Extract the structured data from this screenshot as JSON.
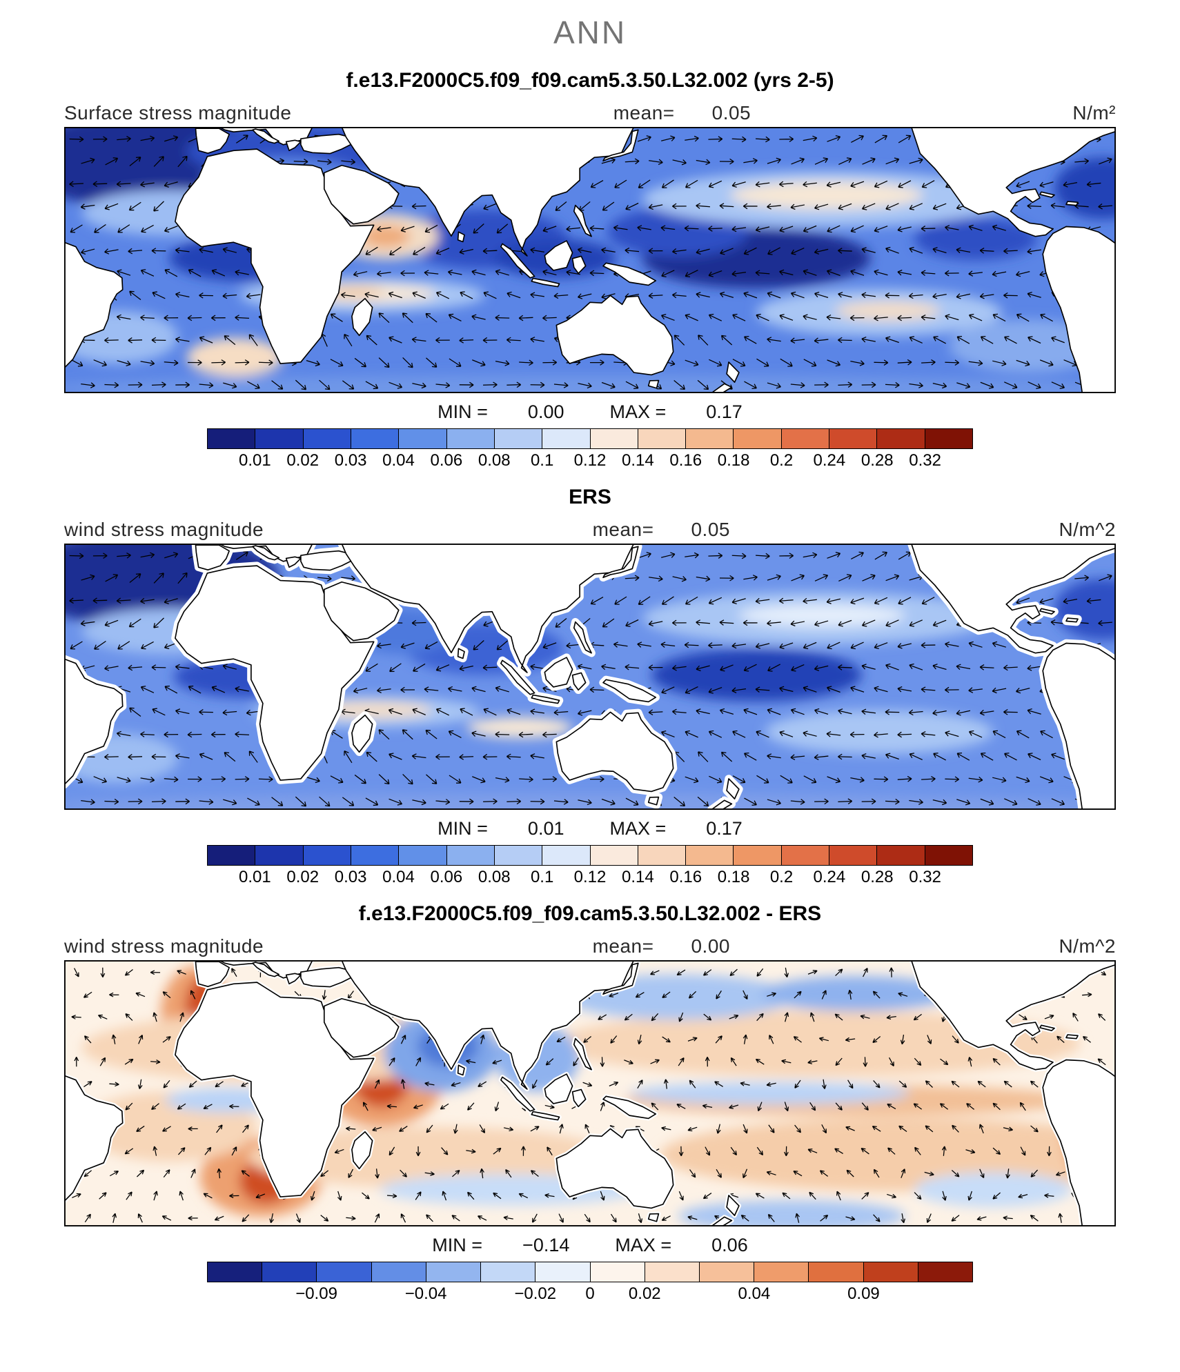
{
  "title": "ANN",
  "panels": [
    {
      "heading": "f.e13.F2000C5.f09_f09.cam5.3.50.L32.002 (yrs 2-5)",
      "field_label": "Surface stress magnitude",
      "mean_label": "mean=",
      "mean_value": "0.05",
      "units": "N/m²",
      "min_label": "MIN =",
      "min_value": "0.00",
      "max_label": "MAX =",
      "max_value": "0.17",
      "colorbar_ref": "stress"
    },
    {
      "heading": "ERS",
      "field_label": "wind stress magnitude",
      "mean_label": "mean=",
      "mean_value": "0.05",
      "units": "N/m^2",
      "min_label": "MIN =",
      "min_value": "0.01",
      "max_label": "MAX =",
      "max_value": "0.17",
      "colorbar_ref": "stress"
    },
    {
      "heading": "f.e13.F2000C5.f09_f09.cam5.3.50.L32.002 - ERS",
      "field_label": "wind stress magnitude",
      "mean_label": "mean=",
      "mean_value": "0.00",
      "units": "N/m^2",
      "min_label": "MIN =",
      "min_value": "−0.14",
      "max_label": "MAX =",
      "max_value": "0.06",
      "colorbar_ref": "diff"
    }
  ],
  "colorbars": {
    "stress": {
      "labels": [
        "0.01",
        "0.02",
        "0.03",
        "0.04",
        "0.06",
        "0.08",
        "0.1",
        "0.12",
        "0.14",
        "0.16",
        "0.18",
        "0.2",
        "0.24",
        "0.28",
        "0.32"
      ],
      "colors": [
        "#151e7a",
        "#1d35ad",
        "#2b52cf",
        "#3d6ee0",
        "#6190e8",
        "#8bb0ef",
        "#b5cdf5",
        "#dce8fa",
        "#faeadd",
        "#f8d6bc",
        "#f4b98f",
        "#ee9765",
        "#e37148",
        "#cf4b2b",
        "#ad2c15",
        "#7f1205"
      ]
    },
    "diff": {
      "labels": [
        "−0.09",
        "−0.04",
        "−0.02",
        "0",
        "0.02",
        "0.04",
        "0.09"
      ],
      "label_boundaries": [
        2,
        4,
        6,
        7,
        8,
        10,
        12
      ],
      "colors": [
        "#16207c",
        "#2240b8",
        "#3a63d6",
        "#638ee6",
        "#93b5ef",
        "#c3d8f7",
        "#e9f1fb",
        "#fdf4ec",
        "#fbe0cb",
        "#f6c09a",
        "#ef9c6b",
        "#e0703f",
        "#c0401d",
        "#8c1a0a"
      ]
    }
  },
  "chart_data": [
    {
      "type": "heatmap",
      "subtype": "global map with vector overlay",
      "season": "ANN",
      "title": "f.e13.F2000C5.f09_f09.cam5.3.50.L32.002 (yrs 2-5)",
      "variable": "Surface stress magnitude",
      "units": "N/m^2",
      "mean": 0.05,
      "min": 0.0,
      "max": 0.17,
      "contour_levels": [
        0.01,
        0.02,
        0.03,
        0.04,
        0.06,
        0.08,
        0.1,
        0.12,
        0.14,
        0.16,
        0.18,
        0.2,
        0.24,
        0.28,
        0.32
      ],
      "palette": "blue-white-red",
      "overlay": "surface stress direction arrows over oceans",
      "region": "global oceans approx 45N-45S, longitudes from mid-Atlantic eastward across Indian and Pacific to the Americas"
    },
    {
      "type": "heatmap",
      "subtype": "global map with vector overlay",
      "season": "ANN",
      "title": "ERS",
      "variable": "wind stress magnitude",
      "units": "N/m^2",
      "mean": 0.05,
      "min": 0.01,
      "max": 0.17,
      "contour_levels": [
        0.01,
        0.02,
        0.03,
        0.04,
        0.06,
        0.08,
        0.1,
        0.12,
        0.14,
        0.16,
        0.18,
        0.2,
        0.24,
        0.28,
        0.32
      ],
      "palette": "blue-white-red",
      "overlay": "wind stress direction arrows over oceans (satellite mask near coasts)",
      "region": "global oceans approx 45N-45S"
    },
    {
      "type": "heatmap",
      "subtype": "difference map with vector overlay",
      "season": "ANN",
      "title": "f.e13.F2000C5.f09_f09.cam5.3.50.L32.002 - ERS",
      "variable": "wind stress magnitude difference",
      "units": "N/m^2",
      "mean": 0.0,
      "min": -0.14,
      "max": 0.06,
      "contour_levels": [
        -0.09,
        -0.04,
        -0.02,
        0,
        0.02,
        0.04,
        0.09
      ],
      "palette": "blue-white-red diverging",
      "overlay": "difference vector arrows over oceans",
      "region": "global oceans approx 45N-45S"
    }
  ]
}
